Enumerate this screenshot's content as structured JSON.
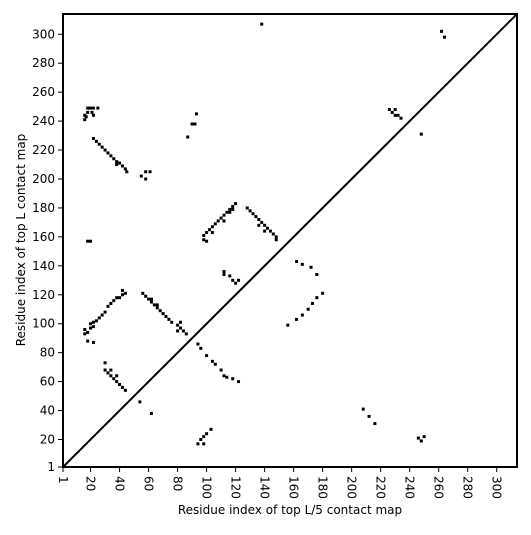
{
  "chart_data": {
    "type": "scatter",
    "x_label": "Residue index of top L/5 contact map",
    "y_label": "Residue index of top L contact map",
    "xlim": [
      1,
      314
    ],
    "ylim": [
      1,
      314
    ],
    "xticks": [
      1,
      20,
      40,
      60,
      80,
      100,
      120,
      140,
      160,
      180,
      200,
      220,
      240,
      260,
      280,
      300
    ],
    "yticks": [
      1,
      20,
      40,
      60,
      80,
      100,
      120,
      140,
      160,
      180,
      200,
      220,
      240,
      260,
      280,
      300
    ],
    "diagonal": true,
    "color": "#000000",
    "x": [
      16,
      16,
      18,
      18,
      20,
      21,
      22,
      22,
      25,
      17,
      22,
      24,
      26,
      28,
      30,
      32,
      34,
      36,
      38,
      40,
      42,
      44,
      45,
      38,
      55,
      58,
      58,
      61,
      87,
      90,
      92,
      93,
      16,
      16,
      18,
      20,
      20,
      22,
      22,
      24,
      26,
      28,
      30,
      32,
      34,
      36,
      38,
      40,
      42,
      42,
      44,
      18,
      22,
      56,
      58,
      60,
      62,
      62,
      64,
      66,
      66,
      68,
      70,
      72,
      74,
      76,
      80,
      82,
      82,
      84,
      86,
      80,
      30,
      30,
      32,
      34,
      36,
      38,
      40,
      42,
      44,
      34,
      38,
      98,
      98,
      100,
      102,
      104,
      106,
      108,
      110,
      112,
      114,
      116,
      118,
      120,
      100,
      104,
      112,
      116,
      118,
      128,
      130,
      132,
      134,
      136,
      138,
      140,
      142,
      144,
      146,
      148,
      136,
      140,
      148,
      112,
      112,
      116,
      118,
      120,
      122,
      156,
      162,
      166,
      170,
      173,
      176,
      180,
      162,
      166,
      172,
      176,
      94,
      96,
      100,
      104,
      106,
      110,
      112,
      114,
      118,
      122,
      20,
      18,
      138,
      262,
      264,
      226,
      228,
      230,
      232,
      234,
      230,
      248,
      94,
      96,
      98,
      100,
      98,
      103,
      208,
      212,
      216,
      246,
      248,
      250,
      54,
      62
    ],
    "y": [
      241,
      244,
      246,
      249,
      249,
      246,
      244,
      249,
      249,
      243,
      228,
      226,
      224,
      222,
      220,
      218,
      216,
      214,
      212,
      211,
      209,
      207,
      205,
      210,
      202,
      205,
      200,
      205,
      229,
      238,
      238,
      245,
      93,
      96,
      94,
      97,
      100,
      98,
      101,
      102,
      104,
      106,
      108,
      112,
      114,
      116,
      118,
      118,
      120,
      123,
      121,
      88,
      87,
      121,
      119,
      117,
      115,
      117,
      113,
      111,
      113,
      109,
      107,
      105,
      103,
      101,
      99,
      97,
      101,
      95,
      93,
      95,
      73,
      68,
      66,
      64,
      62,
      60,
      58,
      56,
      54,
      68,
      64,
      158,
      161,
      163,
      165,
      167,
      169,
      171,
      173,
      175,
      177,
      179,
      181,
      183,
      157,
      163,
      171,
      177,
      179,
      180,
      178,
      176,
      174,
      172,
      170,
      168,
      166,
      164,
      162,
      160,
      168,
      164,
      158,
      134,
      136,
      133,
      130,
      128,
      130,
      99,
      103,
      106,
      110,
      114,
      118,
      121,
      143,
      141,
      139,
      134,
      86,
      83,
      78,
      74,
      72,
      68,
      64,
      63,
      62,
      60,
      157,
      157,
      307,
      302,
      298,
      248,
      246,
      244,
      244,
      242,
      248,
      231,
      17,
      20,
      22,
      24,
      17,
      27,
      41,
      36,
      31,
      21,
      19,
      22,
      46,
      38
    ]
  }
}
